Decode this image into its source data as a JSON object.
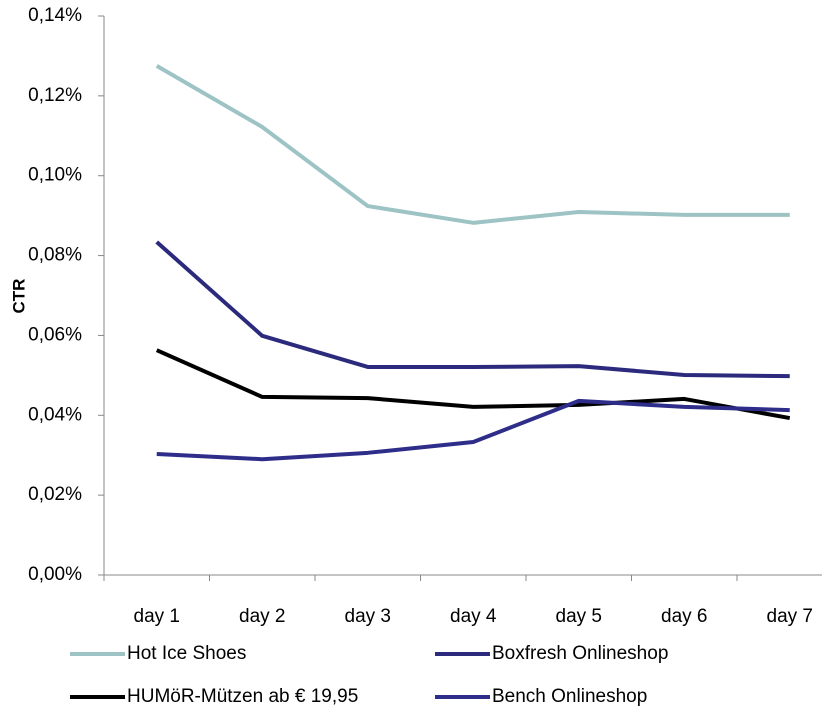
{
  "chart_data": {
    "type": "line",
    "y_label": "CTR",
    "categories": [
      "day 1",
      "day 2",
      "day 3",
      "day 4",
      "day 5",
      "day 6",
      "day 7"
    ],
    "series": [
      {
        "name": "Hot Ice Shoes",
        "color": "#9dc3c4",
        "values": [
          0.1275,
          0.1122,
          0.0924,
          0.0882,
          0.0909,
          0.0902,
          0.0902
        ]
      },
      {
        "name": "Boxfresh Onlineshop",
        "color": "#2b2a7d",
        "values": [
          0.0834,
          0.0599,
          0.0521,
          0.0521,
          0.0523,
          0.0501,
          0.0498
        ]
      },
      {
        "name": "HUMöR-Mützen ab € 19,95",
        "color": "#000000",
        "values": [
          0.0563,
          0.0446,
          0.0443,
          0.0421,
          0.0426,
          0.0441,
          0.0393
        ]
      },
      {
        "name": "Bench Onlineshop",
        "color": "#2e2d8a",
        "values": [
          0.0303,
          0.029,
          0.0306,
          0.0333,
          0.0436,
          0.0421,
          0.0413
        ]
      }
    ],
    "ylim": [
      0,
      0.14
    ],
    "yticks": [
      {
        "value": 0,
        "label": "0,00%"
      },
      {
        "value": 0.02,
        "label": "0,02%"
      },
      {
        "value": 0.04,
        "label": "0,04%"
      },
      {
        "value": 0.06,
        "label": "0,06%"
      },
      {
        "value": 0.08,
        "label": "0,08%"
      },
      {
        "value": 0.1,
        "label": "0,10%"
      },
      {
        "value": 0.12,
        "label": "0,12%"
      },
      {
        "value": 0.14,
        "label": "0,14%"
      }
    ],
    "grid": false,
    "legend": "bottom"
  }
}
